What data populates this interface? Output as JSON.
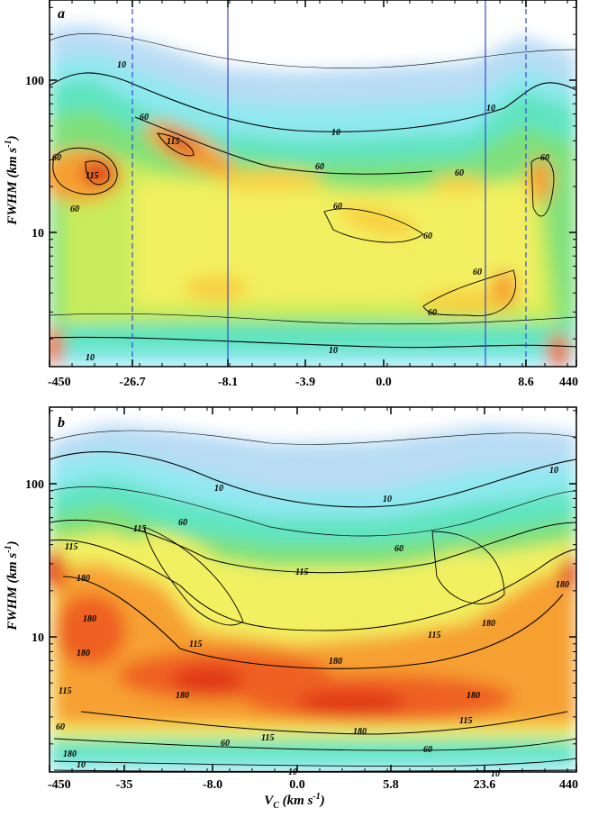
{
  "chart_data": [
    {
      "panel": "a",
      "type": "heatmap",
      "xlabel": "",
      "ylabel": "FWHM (km s⁻¹)",
      "y_scale": "log",
      "ylim": [
        1.5,
        300
      ],
      "y_ticks": [
        10,
        100
      ],
      "x_tick_labels": [
        "-450",
        "-26.7",
        "-8.1",
        "-3.9",
        "0.0",
        "8.6",
        "440"
      ],
      "contour_labels": [
        "10",
        "60",
        "115"
      ],
      "vertical_lines": [
        {
          "style": "dashed",
          "at": "-26.7"
        },
        {
          "style": "solid",
          "at": "-8.1"
        },
        {
          "style": "solid",
          "at": "between 0.0 and 8.6"
        },
        {
          "style": "dashed",
          "at": "8.6"
        }
      ],
      "colormap": [
        "#ffffff",
        "#b8dcf4",
        "#8fe8f0",
        "#5fe4c0",
        "#7ee07a",
        "#c8ec5a",
        "#f2f060",
        "#f8d040",
        "#f6a030",
        "#ef6020",
        "#e03818"
      ]
    },
    {
      "panel": "b",
      "type": "heatmap",
      "xlabel": "V_C (km s⁻¹)",
      "ylabel": "FWHM (km s⁻¹)",
      "y_scale": "log",
      "ylim": [
        1.5,
        300
      ],
      "y_ticks": [
        10,
        100
      ],
      "x_tick_labels": [
        "-450",
        "-35",
        "-8.0",
        "0.0",
        "5.8",
        "23.6",
        "440"
      ],
      "contour_labels": [
        "10",
        "60",
        "115",
        "180"
      ],
      "colormap": [
        "#ffffff",
        "#b8dcf4",
        "#8fe8f0",
        "#5fe4c0",
        "#7ee07a",
        "#c8ec5a",
        "#f2f060",
        "#f8d040",
        "#f6a030",
        "#ef6020",
        "#e03818"
      ]
    }
  ],
  "labels": {
    "a_ylabel_main": "FWHM (km s",
    "a_ylabel_sup": "-1",
    "a_ylabel_end": ")",
    "b_ylabel_main": "FWHM (km s",
    "b_ylabel_sup": "-1",
    "b_ylabel_end": ")",
    "x_main": "V",
    "x_sub": "C",
    "x_unit": " (km s",
    "x_sup": "-1",
    "x_end": ")"
  }
}
